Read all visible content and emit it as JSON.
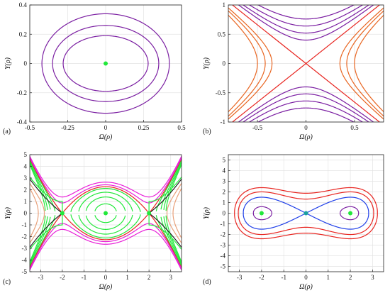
{
  "chart_data": [
    {
      "type": "line",
      "panel_label": "(a)",
      "xlabel": "Ω(ρ)",
      "ylabel": "Y(ρ)",
      "xlim": [
        -0.5,
        0.5
      ],
      "ylim": [
        -0.4,
        0.4
      ],
      "xticks": [
        -0.5,
        -0.25,
        0,
        0.25,
        0.5
      ],
      "xtick_labels": [
        "-0.5",
        "-0.25",
        "0",
        "0.25",
        "0.5"
      ],
      "yticks": [
        -0.4,
        -0.2,
        0,
        0.2,
        0.4
      ],
      "ytick_labels": [
        "-0.4",
        "-0.2",
        "0",
        "0.2",
        "0.4"
      ],
      "grid": true,
      "colors": {
        "orbit": "#7b1fa2",
        "center": "#22e83a"
      },
      "series": [
        {
          "kind": "ellipse",
          "x_semi": 0.42,
          "y_semi": 0.34,
          "color": "#7b1fa2"
        },
        {
          "kind": "ellipse",
          "x_semi": 0.35,
          "y_semi": 0.26,
          "color": "#7b1fa2"
        },
        {
          "kind": "ellipse",
          "x_semi": 0.28,
          "y_semi": 0.19,
          "color": "#7b1fa2"
        }
      ],
      "equilibria": [
        {
          "x": 0,
          "y": 0,
          "color": "#22e83a"
        }
      ]
    },
    {
      "type": "line",
      "panel_label": "(b)",
      "xlabel": "Ω(ρ)",
      "ylabel": "Y(ρ)",
      "xlim": [
        -0.8,
        0.8
      ],
      "ylim": [
        -1,
        1
      ],
      "xticks": [
        -0.5,
        0,
        0.5
      ],
      "xtick_labels": [
        "-0.5",
        "0",
        "0.5"
      ],
      "yticks": [
        -1,
        -0.5,
        0,
        0.5,
        1
      ],
      "ytick_labels": [
        "-1",
        "-0.5",
        "0",
        "0.5",
        "1"
      ],
      "grid": true,
      "colors": {
        "separatrix": "#e8241f",
        "vertical": "#7b1fa2",
        "horizontal": "#e8641f"
      },
      "series": [
        {
          "kind": "hyperbola_y",
          "c": 0.76,
          "color": "#7b1fa2"
        },
        {
          "kind": "hyperbola_y",
          "c": 0.64,
          "color": "#7b1fa2"
        },
        {
          "kind": "hyperbola_y",
          "c": 0.52,
          "color": "#7b1fa2"
        },
        {
          "kind": "hyperbola_y",
          "c": 0.4,
          "color": "#7b1fa2"
        },
        {
          "kind": "hyperbola_x",
          "c": 0.5,
          "color": "#e8641f"
        },
        {
          "kind": "hyperbola_x",
          "c": 0.42,
          "color": "#e8641f"
        },
        {
          "kind": "hyperbola_x",
          "c": 0.35,
          "color": "#e8641f"
        },
        {
          "kind": "separatrix_lines",
          "slope": 1.32,
          "color": "#e8241f"
        }
      ],
      "equilibria": []
    },
    {
      "type": "line",
      "panel_label": "(c)",
      "xlabel": "Ω(ρ)",
      "ylabel": "Y(ρ)",
      "xlim": [
        -3.5,
        3.5
      ],
      "ylim": [
        -5,
        5
      ],
      "xticks": [
        -3,
        -2,
        -1,
        0,
        1,
        2,
        3
      ],
      "xtick_labels": [
        "-3",
        "-2",
        "-1",
        "0",
        "1",
        "2",
        "3"
      ],
      "yticks": [
        -5,
        -4,
        -3,
        -2,
        -1,
        0,
        1,
        2,
        3,
        4,
        5
      ],
      "ytick_labels": [
        "-5",
        "-4",
        "-3",
        "-2",
        "-1",
        "0",
        "1",
        "2",
        "3",
        "4",
        "5"
      ],
      "grid": true,
      "colors": {
        "separatrix": "#e8241f",
        "inner": "#22e83a",
        "outer": "#e81fd8",
        "edge_dark": "#222222",
        "edge_peach": "#e8a07a"
      },
      "series": [
        {
          "kind": "duffing_hard",
          "level": 0.5,
          "color": "#22e83a"
        },
        {
          "kind": "duffing_hard",
          "level": 1.5,
          "color": "#22e83a"
        },
        {
          "kind": "duffing_hard",
          "level": 2.5,
          "color": "#22e83a"
        },
        {
          "kind": "duffing_hard",
          "level": 3.5,
          "color": "#22e83a"
        },
        {
          "kind": "duffing_hard",
          "level": 4.0,
          "color": "#e8241f"
        },
        {
          "kind": "duffing_hard",
          "level": 4.6,
          "color": "#e81fd8"
        },
        {
          "kind": "duffing_hard",
          "level": 5.5,
          "color": "#e81fd8"
        },
        {
          "kind": "duffing_hard",
          "level": 3.0,
          "color": "#22e83a",
          "branch": "outer"
        },
        {
          "kind": "duffing_hard",
          "level": 2.0,
          "color": "#222222",
          "branch": "outer"
        },
        {
          "kind": "duffing_hard",
          "level": 0.0,
          "color": "#e8a07a",
          "branch": "outer"
        },
        {
          "kind": "duffing_hard",
          "level": -2.0,
          "color": "#e8a07a",
          "branch": "outer"
        }
      ],
      "equilibria": [
        {
          "x": 0,
          "y": 0,
          "color": "#22e83a"
        },
        {
          "x": -2,
          "y": 0,
          "color": "#22e83a"
        },
        {
          "x": 2,
          "y": 0,
          "color": "#22e83a"
        }
      ]
    },
    {
      "type": "line",
      "panel_label": "(d)",
      "xlabel": "Ω(ρ)",
      "ylabel": "Y(ρ)",
      "xlim": [
        -3.5,
        3.5
      ],
      "ylim": [
        -5.5,
        5.5
      ],
      "xticks": [
        -3,
        -2,
        -1,
        0,
        1,
        2,
        3
      ],
      "xtick_labels": [
        "-3",
        "-2",
        "-1",
        "0",
        "1",
        "2",
        "3"
      ],
      "yticks": [
        -5,
        -4,
        -3,
        -2,
        -1,
        0,
        1,
        2,
        3,
        4,
        5
      ],
      "ytick_labels": [
        "-5",
        "-4",
        "-3",
        "-2",
        "-1",
        "0",
        "1",
        "2",
        "3",
        "4",
        "5"
      ],
      "grid": true,
      "colors": {
        "separatrix": "#1f3fe8",
        "inner": "#7b1fa2",
        "outer": "#e8241f",
        "center": "#22e83a",
        "saddle": "#1aa0a0"
      },
      "series": [
        {
          "kind": "duffing_double",
          "level": -3.0,
          "color": "#7b1fa2"
        },
        {
          "kind": "duffing_double",
          "level": -1.5,
          "color": "#7b1fa2"
        },
        {
          "kind": "duffing_double",
          "level": 0.0,
          "color": "#1f3fe8"
        },
        {
          "kind": "duffing_double",
          "level": 1.4,
          "color": "#e8241f"
        },
        {
          "kind": "duffing_double",
          "level": 2.8,
          "color": "#e8241f"
        }
      ],
      "equilibria": [
        {
          "x": -2,
          "y": 0,
          "color": "#22e83a"
        },
        {
          "x": 2,
          "y": 0,
          "color": "#22e83a"
        },
        {
          "x": 0,
          "y": 0,
          "color": "#1aa0a0"
        }
      ]
    }
  ]
}
